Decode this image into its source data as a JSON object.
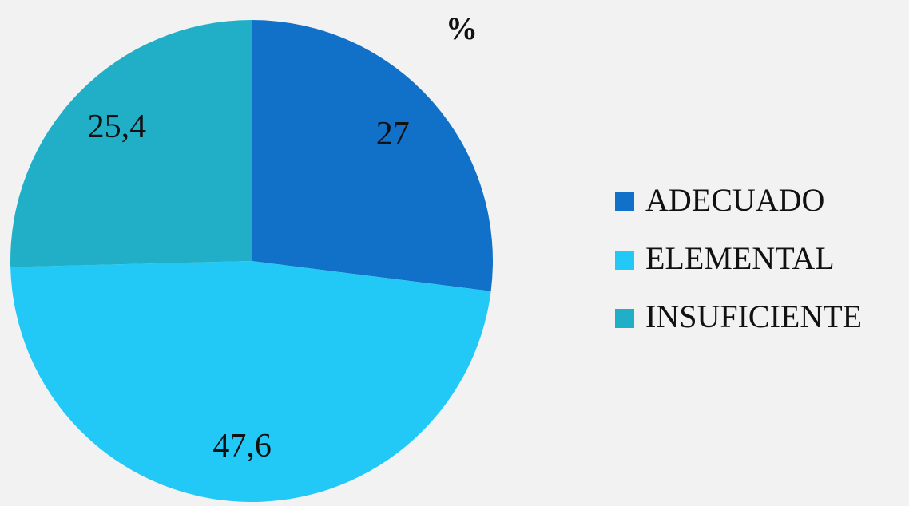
{
  "chart_data": {
    "type": "pie",
    "title": "%",
    "categories": [
      "ADECUADO",
      "ELEMENTAL",
      "INSUFICIENTE"
    ],
    "values": [
      27,
      47.6,
      25.4
    ],
    "value_labels": [
      "27",
      "47,6",
      "25,4"
    ],
    "colors": [
      "#1170c8",
      "#22c9f7",
      "#20afc7"
    ],
    "legend": "right"
  }
}
